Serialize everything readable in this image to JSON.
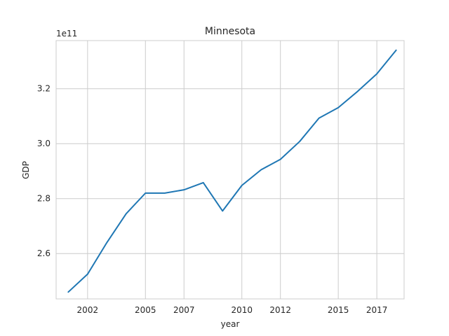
{
  "chart_data": {
    "type": "line",
    "title": "Minnesota",
    "xlabel": "year",
    "ylabel": "GDP",
    "y_offset_label": "1e11",
    "x_ticks": [
      "2002",
      "2005",
      "2007",
      "2010",
      "2012",
      "2015",
      "2017"
    ],
    "y_ticks": [
      "2.6",
      "2.8",
      "3.0",
      "3.2"
    ],
    "xlim": [
      "2000-05-15",
      "2018-06-01"
    ],
    "ylim": [
      2.435,
      3.375
    ],
    "grid": true,
    "series": [
      {
        "color": "#1f77b4",
        "points": [
          [
            "2001-01-01",
            2.46
          ],
          [
            "2002-01-01",
            2.525
          ],
          [
            "2003-01-01",
            2.64
          ],
          [
            "2004-01-01",
            2.745
          ],
          [
            "2005-01-01",
            2.82
          ],
          [
            "2006-01-01",
            2.82
          ],
          [
            "2007-01-01",
            2.832
          ],
          [
            "2008-01-01",
            2.858
          ],
          [
            "2009-01-01",
            2.755
          ],
          [
            "2010-01-01",
            2.848
          ],
          [
            "2011-01-01",
            2.905
          ],
          [
            "2012-01-01",
            2.943
          ],
          [
            "2013-01-01",
            3.008
          ],
          [
            "2014-01-01",
            3.093
          ],
          [
            "2015-01-01",
            3.131
          ],
          [
            "2016-01-01",
            3.19
          ],
          [
            "2017-01-01",
            3.254
          ],
          [
            "2018-01-01",
            3.34
          ]
        ]
      }
    ]
  }
}
